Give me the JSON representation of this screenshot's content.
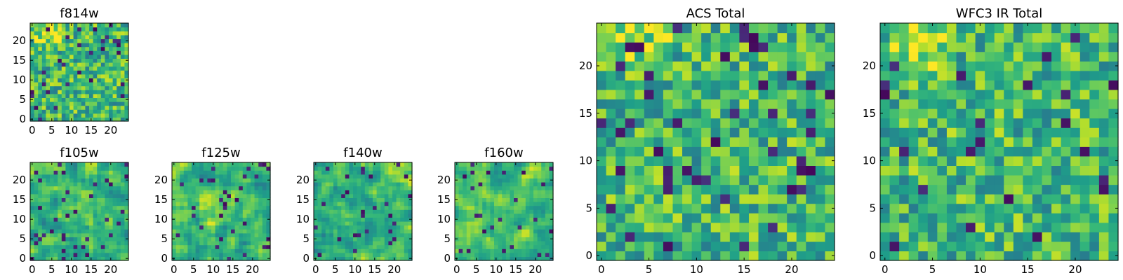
{
  "chart_data": [
    {
      "type": "heatmap",
      "title": "f814w",
      "xlim": [
        0,
        25
      ],
      "ylim": [
        0,
        25
      ],
      "xticks": [
        0,
        5,
        10,
        15,
        20
      ],
      "yticks": [
        0,
        5,
        10,
        15,
        20
      ],
      "grid": false,
      "colormap": "viridis",
      "seed": 11,
      "smooth": 0,
      "high_region": "top-left"
    },
    {
      "type": "heatmap",
      "title": "f105w",
      "xlim": [
        0,
        25
      ],
      "ylim": [
        0,
        25
      ],
      "xticks": [
        0,
        5,
        10,
        15,
        20
      ],
      "yticks": [
        0,
        5,
        10,
        15,
        20
      ],
      "grid": false,
      "colormap": "viridis",
      "seed": 23,
      "smooth": 1,
      "high_region": "center"
    },
    {
      "type": "heatmap",
      "title": "f125w",
      "xlim": [
        0,
        25
      ],
      "ylim": [
        0,
        25
      ],
      "xticks": [
        0,
        5,
        10,
        15,
        20
      ],
      "yticks": [
        0,
        5,
        10,
        15,
        20
      ],
      "grid": false,
      "colormap": "viridis",
      "seed": 37,
      "smooth": 1,
      "high_region": "center"
    },
    {
      "type": "heatmap",
      "title": "f140w",
      "xlim": [
        0,
        25
      ],
      "ylim": [
        0,
        25
      ],
      "xticks": [
        0,
        5,
        10,
        15,
        20
      ],
      "yticks": [
        0,
        5,
        10,
        15,
        20
      ],
      "grid": false,
      "colormap": "viridis",
      "seed": 41,
      "smooth": 1,
      "high_region": "top-right"
    },
    {
      "type": "heatmap",
      "title": "f160w",
      "xlim": [
        0,
        25
      ],
      "ylim": [
        0,
        25
      ],
      "xticks": [
        0,
        5,
        10,
        15,
        20
      ],
      "yticks": [
        0,
        5,
        10,
        15,
        20
      ],
      "grid": false,
      "colormap": "viridis",
      "seed": 53,
      "smooth": 1,
      "high_region": "top-right"
    },
    {
      "type": "heatmap",
      "title": "ACS Total",
      "xlim": [
        0,
        25
      ],
      "ylim": [
        0,
        25
      ],
      "xticks": [
        0,
        5,
        10,
        15,
        20
      ],
      "yticks": [
        0,
        5,
        10,
        15,
        20
      ],
      "grid": false,
      "colormap": "viridis",
      "seed": 67,
      "smooth": 0,
      "high_region": "top-left"
    },
    {
      "type": "heatmap",
      "title": "WFC3 IR Total",
      "xlim": [
        0,
        25
      ],
      "ylim": [
        0,
        25
      ],
      "xticks": [
        0,
        5,
        10,
        15,
        20
      ],
      "yticks": [
        0,
        5,
        10,
        15,
        20
      ],
      "grid": false,
      "colormap": "viridis",
      "seed": 79,
      "smooth": 0,
      "high_region": "top-left"
    }
  ]
}
